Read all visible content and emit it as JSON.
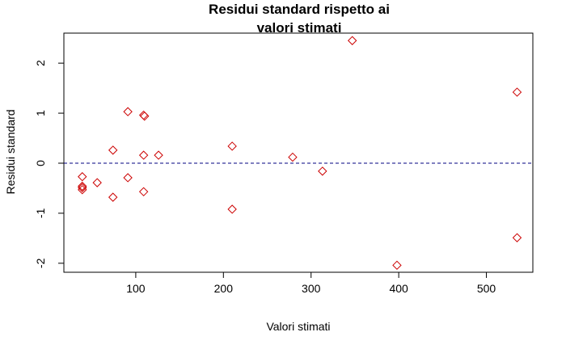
{
  "chart_data": {
    "type": "scatter",
    "title_lines": [
      "Residui standard rispetto ai",
      "valori stimati"
    ],
    "xlabel": "Valori stimati",
    "ylabel": "Residui standard",
    "xlim": [
      18,
      553
    ],
    "ylim": [
      -2.18,
      2.6
    ],
    "x_ticks": [
      100,
      200,
      300,
      400,
      500
    ],
    "y_ticks": [
      -2,
      -1,
      0,
      1,
      2
    ],
    "hline": 0,
    "marker": "diamond",
    "marker_color": "#cc0000",
    "line_color": "#000080",
    "points": [
      {
        "x": 39,
        "y": -0.27
      },
      {
        "x": 39,
        "y": -0.46
      },
      {
        "x": 39,
        "y": -0.49
      },
      {
        "x": 39,
        "y": -0.53
      },
      {
        "x": 56,
        "y": -0.39
      },
      {
        "x": 74,
        "y": 0.26
      },
      {
        "x": 74,
        "y": -0.68
      },
      {
        "x": 91,
        "y": 1.03
      },
      {
        "x": 91,
        "y": -0.29
      },
      {
        "x": 109,
        "y": 0.96
      },
      {
        "x": 110,
        "y": 0.94
      },
      {
        "x": 109,
        "y": 0.16
      },
      {
        "x": 109,
        "y": -0.57
      },
      {
        "x": 126,
        "y": 0.16
      },
      {
        "x": 210,
        "y": 0.34
      },
      {
        "x": 210,
        "y": -0.92
      },
      {
        "x": 279,
        "y": 0.12
      },
      {
        "x": 313,
        "y": -0.16
      },
      {
        "x": 347,
        "y": 2.45
      },
      {
        "x": 398,
        "y": -2.04
      },
      {
        "x": 535,
        "y": 1.42
      },
      {
        "x": 535,
        "y": -1.49
      }
    ]
  }
}
